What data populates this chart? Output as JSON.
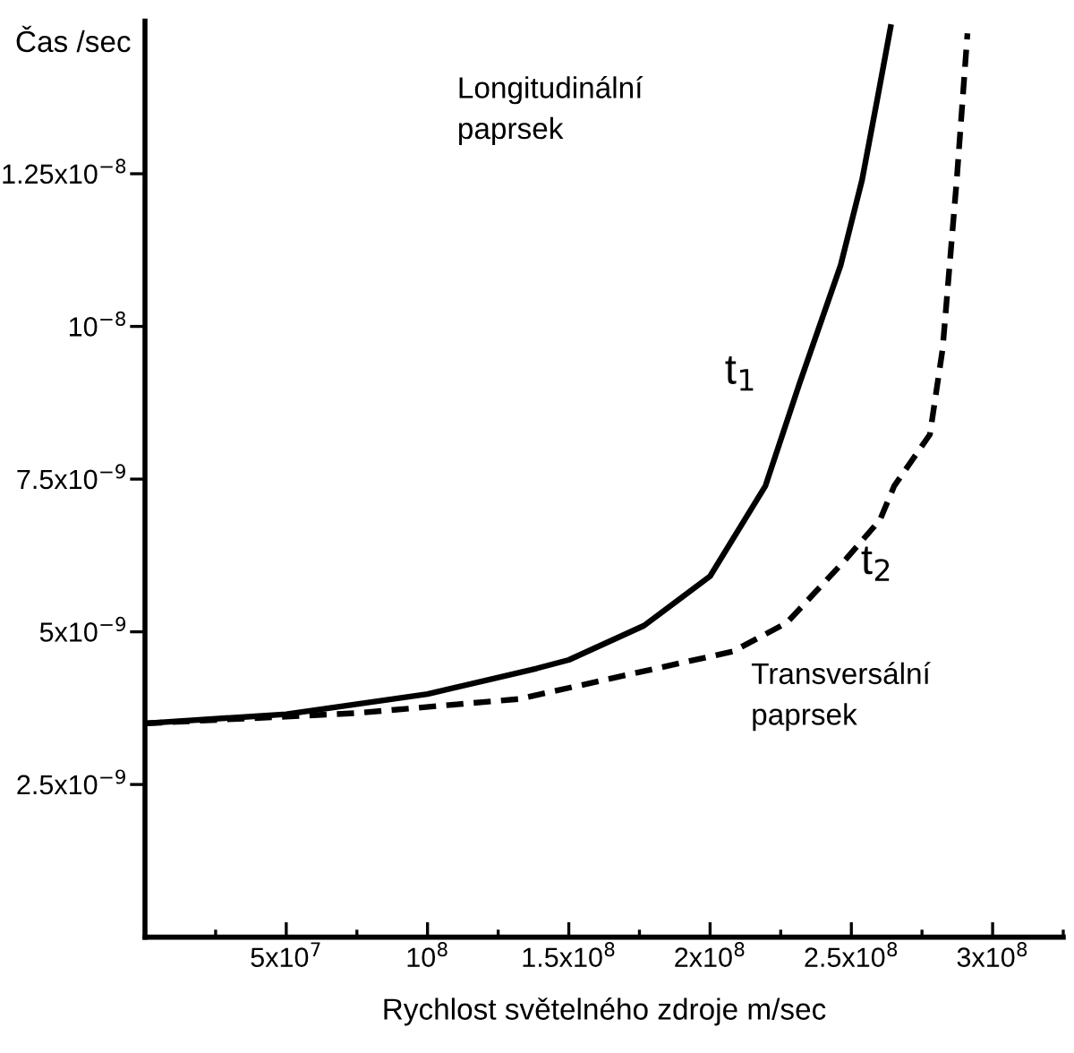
{
  "chart_data": {
    "type": "line",
    "xlabel": "Rychlost světelného zdroje m/sec",
    "ylabel": "Čas /sec",
    "xlim": [
      0,
      325000000
    ],
    "ylim": [
      0,
      1.5e-08
    ],
    "xticks": [
      {
        "value": 25000000,
        "label": null
      },
      {
        "value": 50000000,
        "label": "5x10$^{7}$"
      },
      {
        "value": 75000000,
        "label": null
      },
      {
        "value": 100000000,
        "label": "10$^{8}$"
      },
      {
        "value": 125000000,
        "label": null
      },
      {
        "value": 150000000,
        "label": "1.5x10$^{8}$"
      },
      {
        "value": 175000000,
        "label": null
      },
      {
        "value": 200000000,
        "label": "2x10$^{8}$"
      },
      {
        "value": 225000000,
        "label": null
      },
      {
        "value": 250000000,
        "label": "2.5x10$^{8}$"
      },
      {
        "value": 275000000,
        "label": null
      },
      {
        "value": 300000000,
        "label": "3x10$^{8}$"
      },
      {
        "value": 325000000,
        "label": null
      }
    ],
    "yticks": [
      {
        "value": 2.5e-09,
        "label": "2.5x10$^{−9}$"
      },
      {
        "value": 5e-09,
        "label": "5x10$^{−9}$"
      },
      {
        "value": 7.5e-09,
        "label": "7.5x10$^{−9}$"
      },
      {
        "value": 1e-08,
        "label": "10$^{−8}$"
      },
      {
        "value": 1.25e-08,
        "label": "1.25x10$^{−8}$"
      }
    ],
    "grid": false,
    "legend": false,
    "series": [
      {
        "name": "t$_{1}$",
        "color": "#000000",
        "line_style": "solid",
        "x": [
          0,
          50000000,
          100000000,
          138600000,
          150000000,
          176600000,
          200000000,
          219600000,
          231600000,
          246200000,
          253800000,
          259500000,
          263900000
        ],
        "values": [
          3.5e-09,
          3.65e-09,
          3.98e-09,
          4.4e-09,
          4.54e-09,
          5.1e-09,
          5.91e-09,
          7.39e-09,
          9.06e-09,
          1.1e-08,
          1.24e-08,
          1.38e-08,
          1.49e-08
        ]
      },
      {
        "name": "t$_{2}$",
        "color": "#000000",
        "line_style": "dashed",
        "x": [
          0,
          75300000,
          132300000,
          208200000,
          227200000,
          248100000,
          260100000,
          265200000,
          277800000,
          282300000,
          287300000,
          291100000
        ],
        "values": [
          3.5e-09,
          3.67e-09,
          3.9e-09,
          4.68e-09,
          5.15e-09,
          6.19e-09,
          6.83e-09,
          7.39e-09,
          8.23e-09,
          9.63e-09,
          1.24e-08,
          1.48e-08
        ]
      }
    ],
    "annotations": [
      "Longitudinální\npaprsek",
      "Transversální\npaprsek"
    ]
  }
}
